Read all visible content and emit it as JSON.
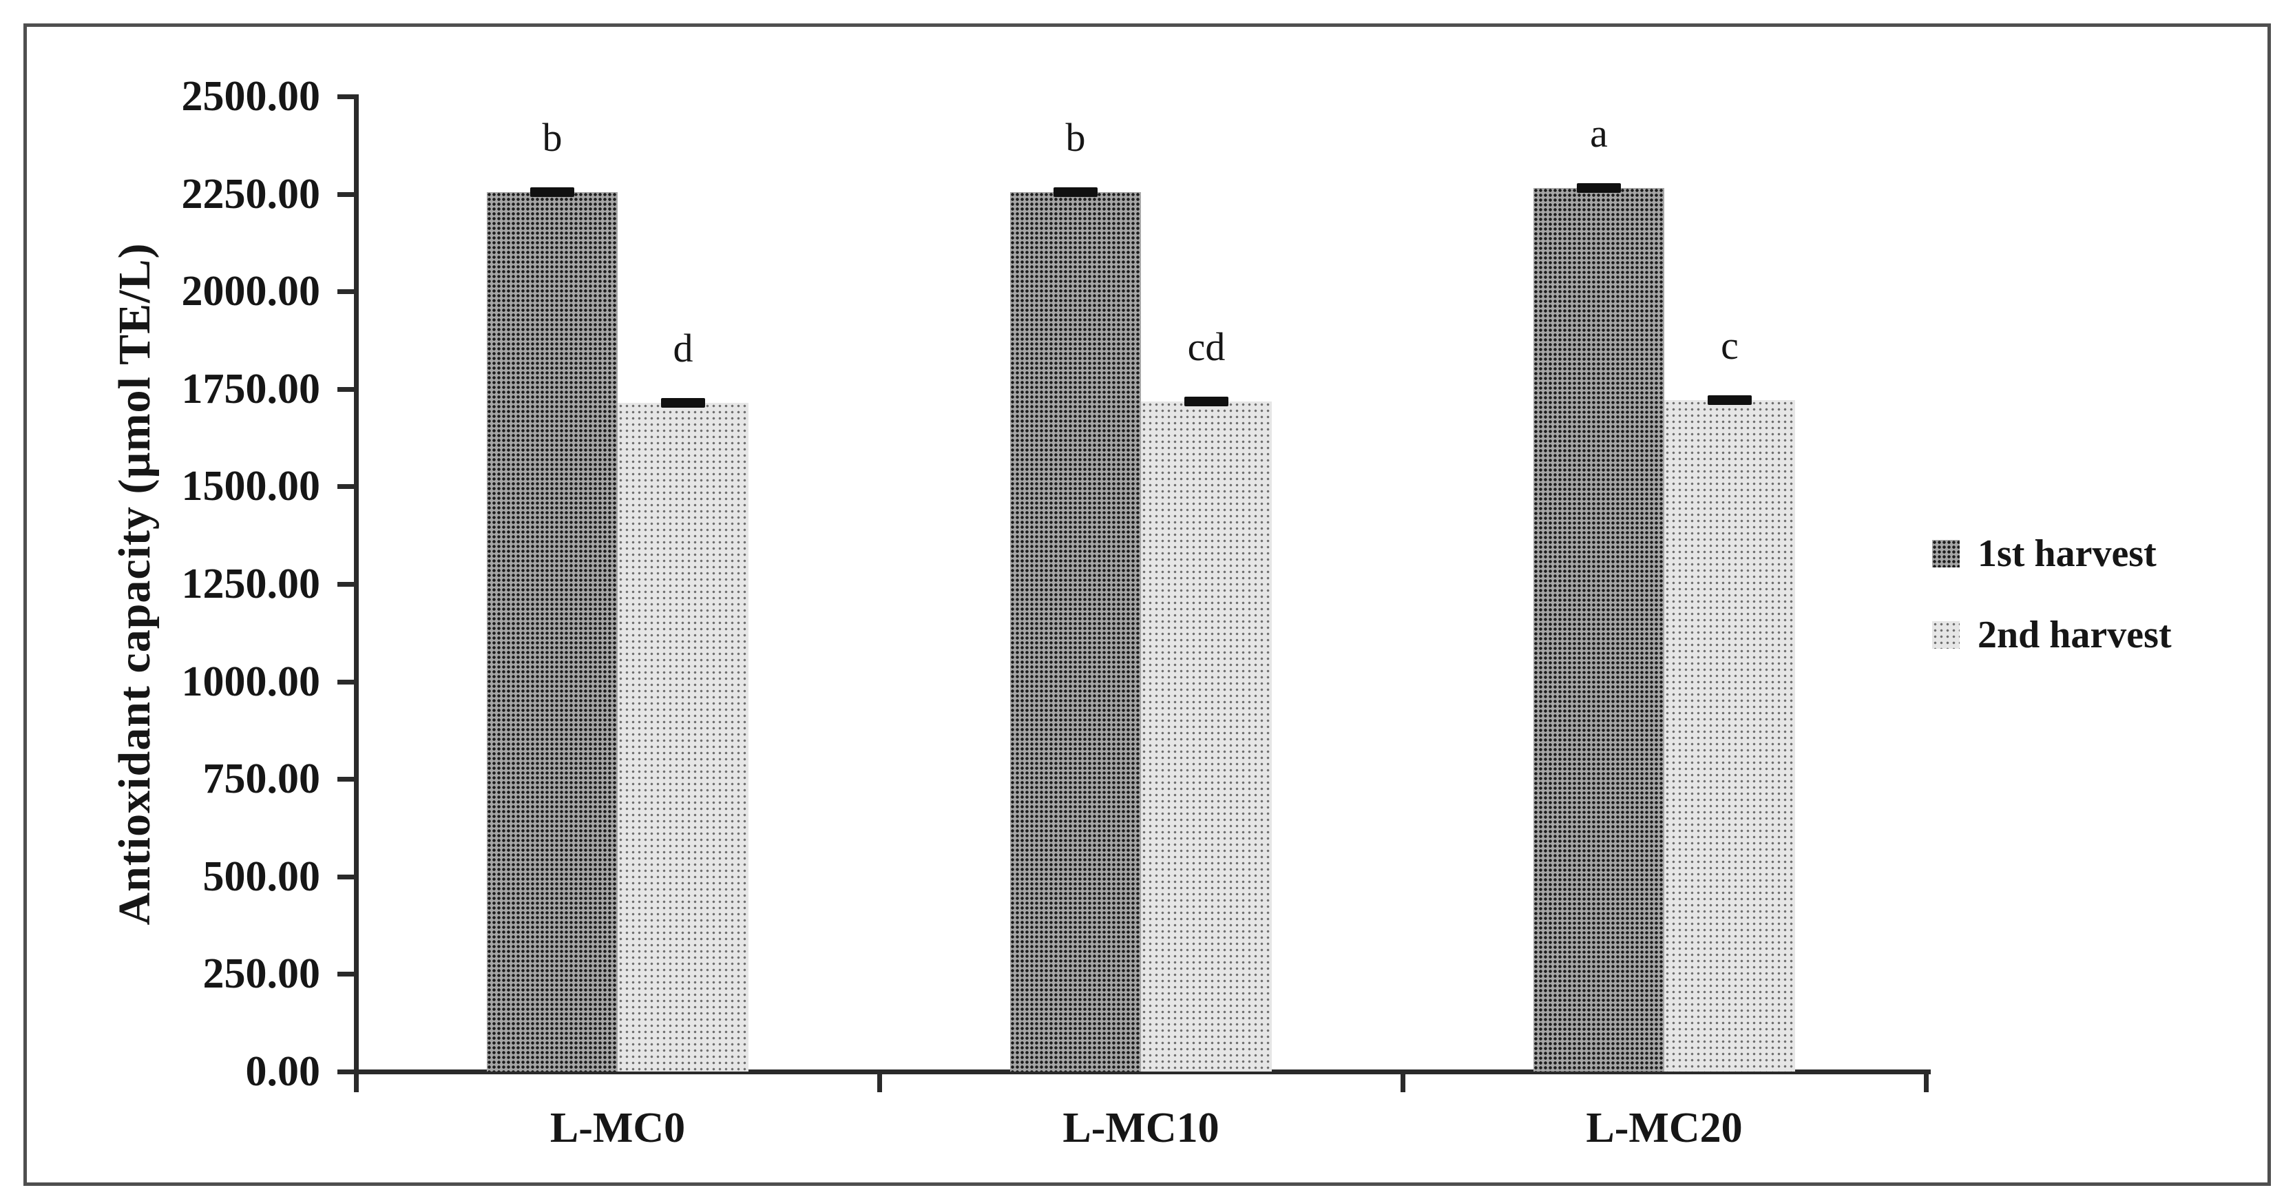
{
  "chart_data": {
    "type": "bar",
    "title": "",
    "categories": [
      "L-MC0",
      "L-MC10",
      "L-MC20"
    ],
    "series": [
      {
        "name": "1st harvest",
        "values": [
          2255,
          2255,
          2265
        ],
        "errors": [
          15,
          15,
          15
        ],
        "sig_letters": [
          "b",
          "b",
          "a"
        ],
        "color_hex": "#8f8f8f"
      },
      {
        "name": "2nd harvest",
        "values": [
          1715,
          1718,
          1722
        ],
        "errors": [
          12,
          12,
          12
        ],
        "sig_letters": [
          "d",
          "cd",
          "c"
        ],
        "color_hex": "#dcdcdc"
      }
    ],
    "xlabel": "",
    "ylabel": "Antioxidant capacity (µmol TE/L)",
    "ylim": [
      0,
      2500
    ],
    "ytick_step": 250,
    "ytick_labels": [
      "0.00",
      "250.00",
      "500.00",
      "750.00",
      "1000.00",
      "1250.00",
      "1500.00",
      "1750.00",
      "2000.00",
      "2250.00",
      "2500.00"
    ],
    "grid": false,
    "legend_position": "right",
    "legend": [
      "1st harvest",
      "2nd harvest"
    ],
    "line_color": "#2a2a2a"
  }
}
